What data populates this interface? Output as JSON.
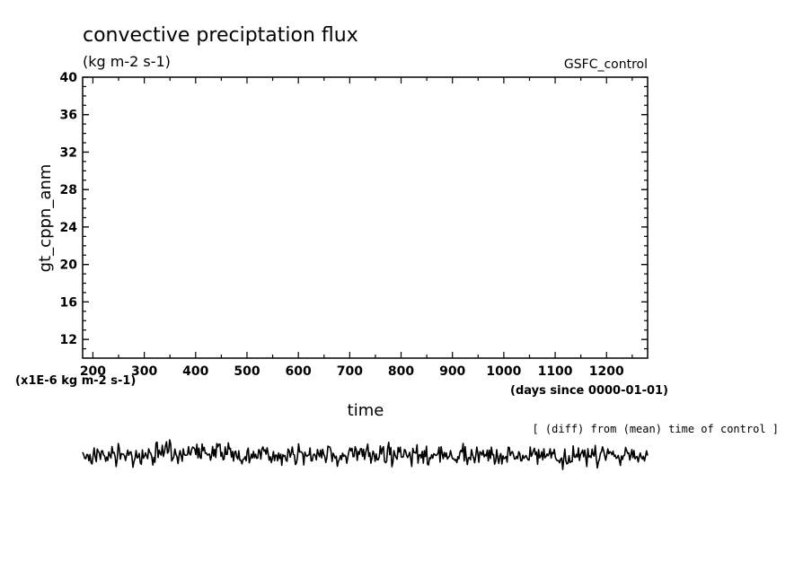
{
  "chart_data": {
    "type": "line",
    "title": "convective preciptation flux",
    "units": "(kg m-2 s-1)",
    "run_label": "GSFC_control",
    "ylabel": "gt_cppn_anm",
    "xlabel": "time",
    "y_scale_note": "(x1E-6 kg m-2 s-1)",
    "x_unit_note": "(days since 0000-01-01)",
    "diff_note": "[ (diff) from (mean) time of control ]",
    "xlim": [
      180,
      1280
    ],
    "ylim": [
      10,
      40
    ],
    "x_ticks": [
      200,
      300,
      400,
      500,
      600,
      700,
      800,
      900,
      1000,
      1100,
      1200
    ],
    "y_ticks": [
      12,
      16,
      20,
      24,
      28,
      32,
      36,
      40
    ],
    "main_series": [],
    "diff_series": {
      "x_start": 180,
      "x_end": 1280,
      "seed": 7,
      "count": 540
    }
  }
}
